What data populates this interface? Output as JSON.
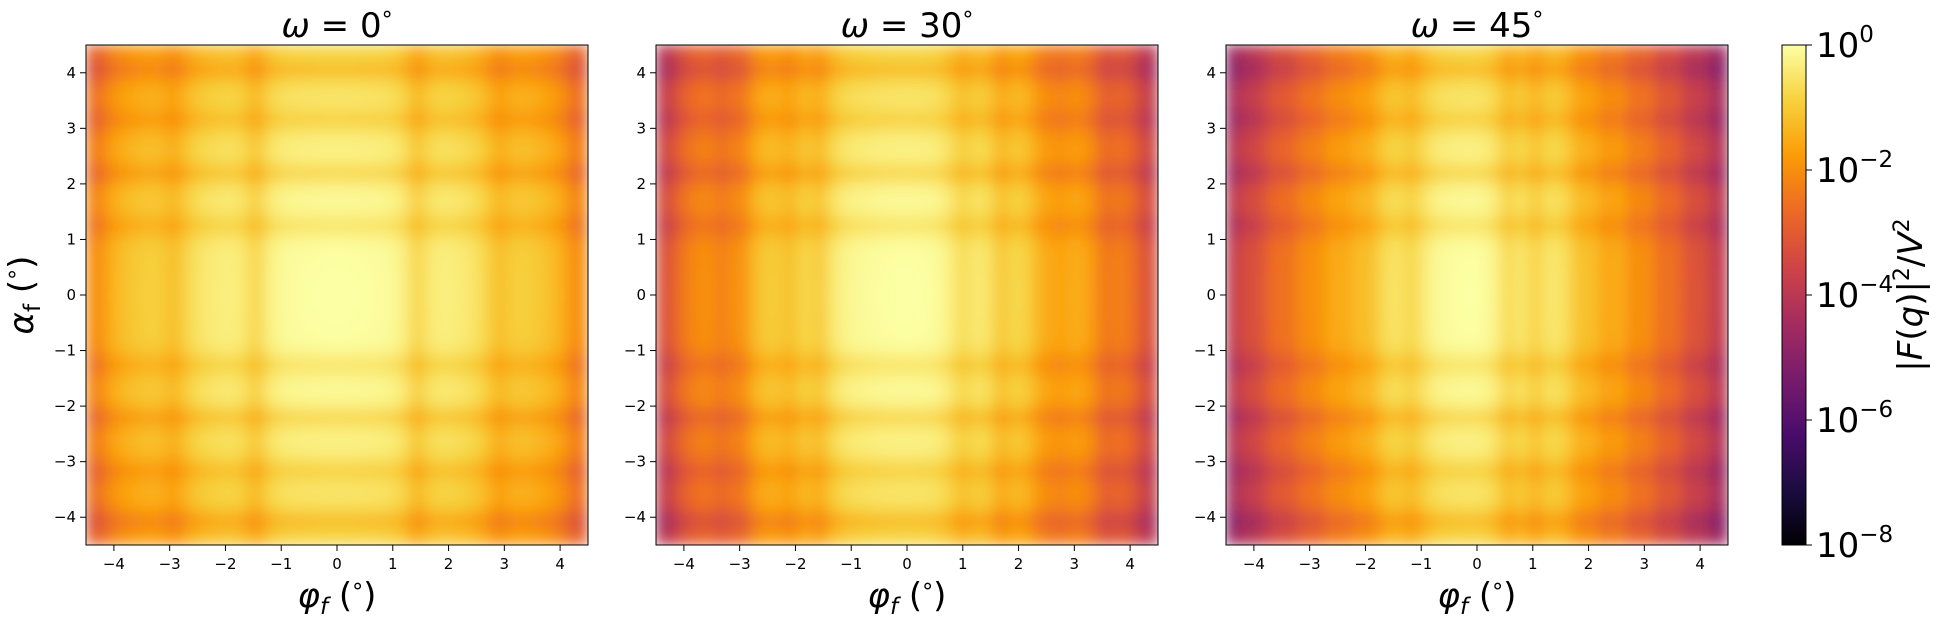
{
  "chart_data": [
    {
      "type": "heatmap",
      "title": "ω = 0°",
      "title_parts": {
        "sym": "ω",
        "eq": " = ",
        "val": "0",
        "deg": "°"
      },
      "omega_deg": 0,
      "xlabel": "φf (°)",
      "ylabel": "αf (°)",
      "xlim": [
        -4.5,
        4.5
      ],
      "ylim": [
        -4.5,
        4.5
      ],
      "xticks": [
        -4,
        -3,
        -2,
        -1,
        0,
        1,
        2,
        3,
        4
      ],
      "yticks": [
        -4,
        -3,
        -2,
        -1,
        0,
        1,
        2,
        3,
        4
      ],
      "colormap": "inferno",
      "color_scale": "log",
      "peak_at": [
        0,
        0
      ],
      "x_minima_approx": [
        -4.3,
        -2.9,
        -1.45,
        1.45,
        2.9,
        4.3
      ],
      "y_minima_approx": [
        -4.05,
        -3.15,
        -2.2,
        -1.25,
        1.25,
        2.2,
        3.15,
        4.05
      ]
    },
    {
      "type": "heatmap",
      "title": "ω = 30°",
      "title_parts": {
        "sym": "ω",
        "eq": " = ",
        "val": "30",
        "deg": "°"
      },
      "omega_deg": 30,
      "xlabel": "φf (°)",
      "ylabel": "",
      "xlim": [
        -4.5,
        4.5
      ],
      "ylim": [
        -4.5,
        4.5
      ],
      "xticks": [
        -4,
        -3,
        -2,
        -1,
        0,
        1,
        2,
        3,
        4
      ],
      "yticks": [
        -4,
        -3,
        -2,
        -1,
        0,
        1,
        2,
        3,
        4
      ],
      "colormap": "inferno",
      "color_scale": "log",
      "peak_at": [
        0,
        0
      ],
      "x_minima_approx": [
        -4.3,
        -3.3,
        -2.95,
        -2.1,
        -1.55,
        1.0,
        1.7,
        2.4,
        2.75,
        3.55,
        4.3
      ],
      "y_minima_approx": [
        -4.05,
        -3.15,
        -2.2,
        -1.25,
        1.25,
        2.2,
        3.15,
        4.05
      ]
    },
    {
      "type": "heatmap",
      "title": "ω = 45°",
      "title_parts": {
        "sym": "ω",
        "eq": " = ",
        "val": "45",
        "deg": "°"
      },
      "omega_deg": 45,
      "xlabel": "φf (°)",
      "ylabel": "",
      "xlim": [
        -4.5,
        4.5
      ],
      "ylim": [
        -4.5,
        4.5
      ],
      "xticks": [
        -4,
        -3,
        -2,
        -1,
        0,
        1,
        2,
        3,
        4
      ],
      "yticks": [
        -4,
        -3,
        -2,
        -1,
        0,
        1,
        2,
        3,
        4
      ],
      "colormap": "inferno",
      "color_scale": "log",
      "peak_at": [
        0,
        0
      ],
      "x_minima_approx": [
        -4.4,
        -3.9,
        -3.35,
        -2.85,
        -2.35,
        -1.9,
        -1.15,
        0.55,
        1.05,
        1.85,
        2.3,
        2.8,
        3.3,
        3.8,
        4.3
      ],
      "y_minima_approx": [
        -4.05,
        -3.15,
        -2.2,
        -1.25,
        1.25,
        2.2,
        3.15,
        4.05
      ]
    }
  ],
  "colorbar": {
    "label": "|F(q)|²/V²",
    "scale": "log",
    "range": [
      1e-08,
      1
    ],
    "ticks": [
      {
        "base": "10",
        "exp": "0",
        "value": 1
      },
      {
        "base": "10",
        "exp": "−2",
        "value": 0.01
      },
      {
        "base": "10",
        "exp": "−4",
        "value": 0.0001
      },
      {
        "base": "10",
        "exp": "−6",
        "value": 1e-06
      },
      {
        "base": "10",
        "exp": "−8",
        "value": 1e-08
      }
    ],
    "stops": [
      "#000004",
      "#1b0c41",
      "#4a0c6b",
      "#781c6d",
      "#a52c60",
      "#cf4446",
      "#ed6925",
      "#fb9b06",
      "#f7d13d",
      "#fcffa4"
    ]
  }
}
